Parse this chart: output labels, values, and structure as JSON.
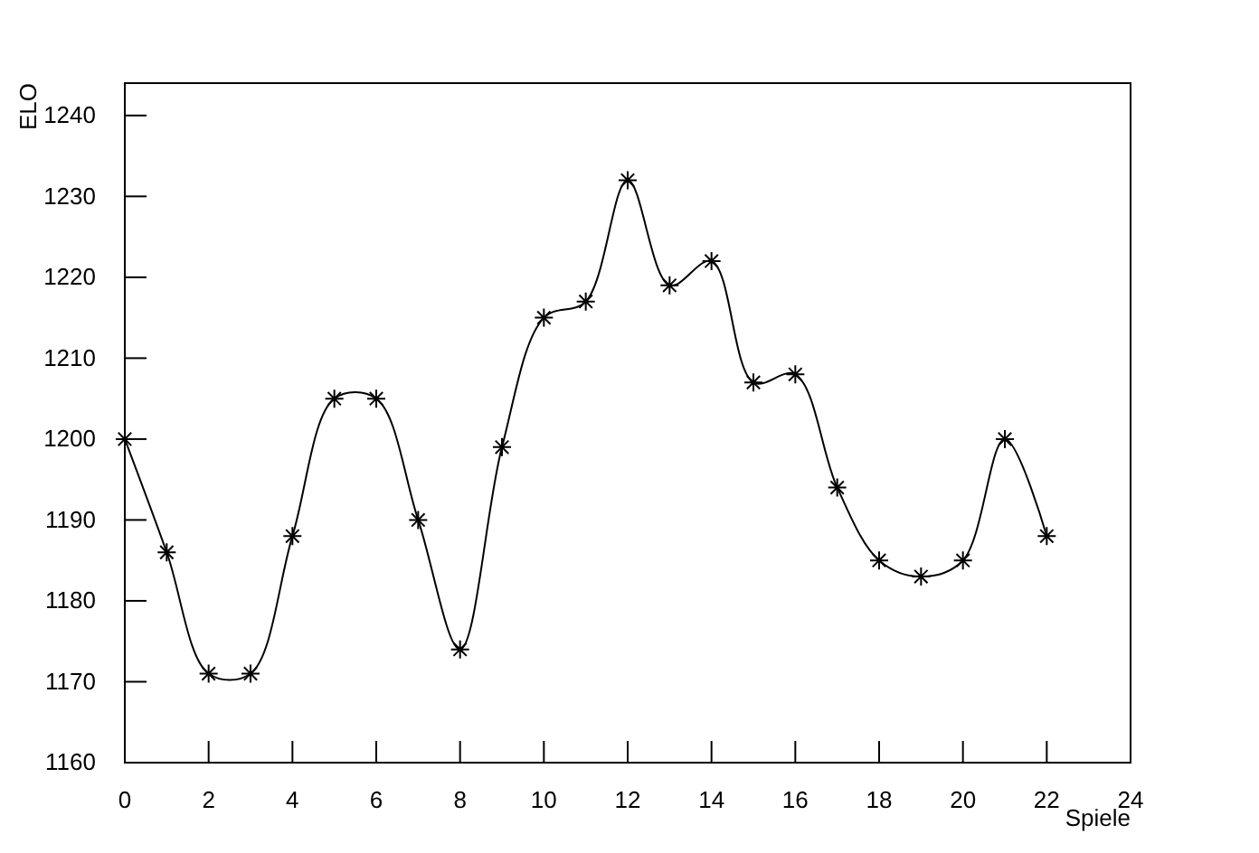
{
  "chart_data": {
    "type": "line",
    "xlabel": "Spiele",
    "ylabel": "ELO",
    "x": [
      0,
      1,
      2,
      3,
      4,
      5,
      6,
      7,
      8,
      9,
      10,
      11,
      12,
      13,
      14,
      15,
      16,
      17,
      18,
      19,
      20,
      21,
      22
    ],
    "values": [
      1200,
      1186,
      1171,
      1171,
      1188,
      1205,
      1205,
      1190,
      1174,
      1199,
      1215,
      1217,
      1232,
      1219,
      1222,
      1207,
      1208,
      1194,
      1185,
      1183,
      1185,
      1200,
      1188
    ],
    "color": "#000000",
    "marker": "cross",
    "line_style": "solid",
    "grid": false,
    "xlim": [
      0,
      24
    ],
    "xticks": [
      0,
      2,
      4,
      6,
      8,
      10,
      12,
      14,
      16,
      18,
      20,
      22,
      24
    ],
    "ylim": [
      1160,
      1244
    ],
    "yticks": [
      1160,
      1170,
      1180,
      1190,
      1200,
      1210,
      1220,
      1230,
      1240
    ]
  }
}
